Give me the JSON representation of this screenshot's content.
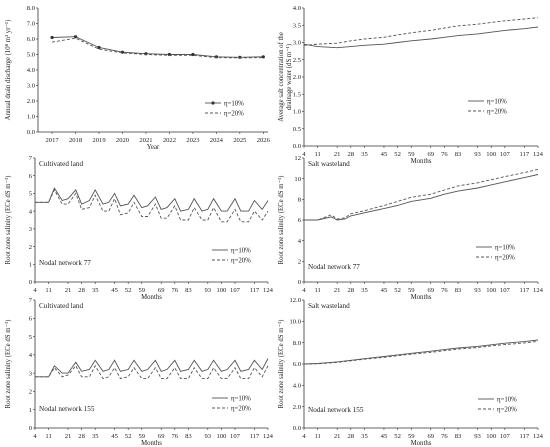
{
  "colors": {
    "series_a": "#555555",
    "series_b": "#555555",
    "axis": "#333333"
  },
  "month_ticks": [
    "4",
    "11",
    "21",
    "28",
    "35",
    "45",
    "52",
    "59",
    "69",
    "76",
    "83",
    "93",
    "100",
    "107",
    "117",
    "124"
  ],
  "chart_data": [
    {
      "type": "line",
      "title": "",
      "xlabel": "Year",
      "ylabel": "Annual drain discharge (10⁸ m³ yr⁻¹)",
      "ylim": [
        0,
        8
      ],
      "yticks": [
        "0.0",
        "1.0",
        "2.0",
        "3.0",
        "4.0",
        "5.0",
        "6.0",
        "7.0",
        "8.0"
      ],
      "categories": [
        "2017",
        "2018",
        "2019",
        "2020",
        "2021",
        "2022",
        "2023",
        "2024",
        "2025",
        "2026"
      ],
      "series": [
        {
          "name": "η=10%",
          "values": [
            6.1,
            6.15,
            5.45,
            5.15,
            5.05,
            5.0,
            5.0,
            4.85,
            4.82,
            4.85
          ]
        },
        {
          "name": "η=20%",
          "values": [
            5.8,
            6.05,
            5.35,
            5.1,
            5.0,
            4.95,
            4.95,
            4.8,
            4.78,
            4.8
          ]
        }
      ],
      "legend": "bottom-right"
    },
    {
      "type": "line",
      "title": "",
      "xlabel": "Months",
      "ylabel": "Average salt concentration of the drainage water (dS m⁻¹)",
      "ylim": [
        0,
        4
      ],
      "yticks": [
        "0.0",
        "0.5",
        "1.0",
        "1.5",
        "2.0",
        "2.5",
        "3.0",
        "3.5",
        "4.0"
      ],
      "x": [
        4,
        11,
        21,
        28,
        35,
        45,
        52,
        59,
        69,
        76,
        83,
        93,
        100,
        107,
        117,
        124
      ],
      "series": [
        {
          "name": "η=10%",
          "values": [
            2.95,
            2.88,
            2.85,
            2.88,
            2.92,
            2.95,
            3.0,
            3.05,
            3.1,
            3.15,
            3.2,
            3.25,
            3.3,
            3.35,
            3.4,
            3.45
          ]
        },
        {
          "name": "η=20%",
          "values": [
            2.92,
            2.95,
            2.98,
            3.05,
            3.1,
            3.15,
            3.22,
            3.28,
            3.35,
            3.42,
            3.48,
            3.53,
            3.58,
            3.63,
            3.68,
            3.72
          ]
        }
      ],
      "legend": "right"
    },
    {
      "type": "line",
      "title": "Cultivated land",
      "annotation": "Nodal network 77",
      "xlabel": "Months",
      "ylabel": "Root zone salinity (ECe dS m⁻¹)",
      "ylim": [
        0,
        7
      ],
      "yticks": [
        "0",
        "1",
        "2",
        "3",
        "4",
        "5",
        "6",
        "7"
      ],
      "x": [
        4,
        8,
        11,
        14,
        18,
        21,
        25,
        28,
        32,
        35,
        39,
        42,
        45,
        48,
        52,
        55,
        59,
        62,
        66,
        69,
        72,
        76,
        79,
        83,
        86,
        90,
        93,
        96,
        100,
        103,
        107,
        110,
        114,
        117,
        121,
        124
      ],
      "series": [
        {
          "name": "η=10%",
          "values": [
            4.5,
            4.5,
            4.5,
            5.3,
            4.6,
            4.7,
            5.2,
            4.4,
            4.6,
            5.2,
            4.4,
            4.5,
            5.0,
            4.3,
            4.4,
            4.9,
            4.2,
            4.3,
            4.8,
            4.1,
            4.2,
            4.7,
            4.0,
            4.1,
            4.7,
            4.0,
            4.1,
            4.7,
            4.0,
            4.0,
            4.7,
            4.0,
            4.0,
            4.6,
            4.1,
            4.6
          ]
        },
        {
          "name": "η=20%",
          "values": [
            4.5,
            4.5,
            4.5,
            5.2,
            4.4,
            4.4,
            5.0,
            4.1,
            4.2,
            4.9,
            4.0,
            4.0,
            4.7,
            3.8,
            3.9,
            4.5,
            3.7,
            3.7,
            4.4,
            3.6,
            3.6,
            4.3,
            3.5,
            3.5,
            4.2,
            3.5,
            3.5,
            4.2,
            3.4,
            3.4,
            4.1,
            3.4,
            3.4,
            4.0,
            3.5,
            4.0
          ]
        }
      ],
      "legend": "bottom-right"
    },
    {
      "type": "line",
      "title": "Salt wasteland",
      "annotation": "Nodal network 77",
      "xlabel": "Months",
      "ylabel": "Root zone salinity (ECe dS m⁻¹)",
      "ylim": [
        0,
        12
      ],
      "yticks": [
        "0",
        "2",
        "4",
        "6",
        "8",
        "10",
        "12"
      ],
      "x": [
        4,
        11,
        18,
        21,
        25,
        28,
        35,
        45,
        52,
        59,
        69,
        76,
        83,
        93,
        100,
        107,
        117,
        124
      ],
      "series": [
        {
          "name": "η=10%",
          "values": [
            6.0,
            6.0,
            6.3,
            6.0,
            6.1,
            6.4,
            6.7,
            7.1,
            7.4,
            7.8,
            8.1,
            8.5,
            8.8,
            9.1,
            9.4,
            9.7,
            10.1,
            10.4
          ]
        },
        {
          "name": "η=20%",
          "values": [
            6.0,
            6.0,
            6.5,
            6.1,
            6.2,
            6.6,
            6.9,
            7.4,
            7.8,
            8.2,
            8.5,
            8.9,
            9.3,
            9.6,
            9.9,
            10.2,
            10.6,
            10.9
          ]
        }
      ],
      "legend": "bottom-right"
    },
    {
      "type": "line",
      "title": "Cultivated land",
      "annotation": "Nodal network 155",
      "xlabel": "Months",
      "ylabel": "Root zone salinity (ECe dS m⁻¹)",
      "ylim": [
        0,
        7
      ],
      "yticks": [
        "0",
        "1",
        "2",
        "3",
        "4",
        "5",
        "6",
        "7"
      ],
      "x": [
        4,
        8,
        11,
        14,
        18,
        21,
        25,
        28,
        32,
        35,
        39,
        42,
        45,
        48,
        52,
        55,
        59,
        62,
        66,
        69,
        72,
        76,
        79,
        83,
        86,
        90,
        93,
        96,
        100,
        103,
        107,
        110,
        114,
        117,
        121,
        124
      ],
      "series": [
        {
          "name": "η=10%",
          "values": [
            2.8,
            2.8,
            2.8,
            3.4,
            3.0,
            3.0,
            3.6,
            3.1,
            3.2,
            3.7,
            3.1,
            3.2,
            3.7,
            3.1,
            3.2,
            3.7,
            3.1,
            3.2,
            3.7,
            3.1,
            3.2,
            3.7,
            3.1,
            3.2,
            3.7,
            3.1,
            3.2,
            3.7,
            3.1,
            3.2,
            3.7,
            3.1,
            3.2,
            3.7,
            3.2,
            3.8
          ]
        },
        {
          "name": "η=20%",
          "values": [
            2.8,
            2.8,
            2.8,
            3.3,
            2.8,
            2.9,
            3.4,
            2.8,
            2.8,
            3.4,
            2.7,
            2.8,
            3.3,
            2.7,
            2.8,
            3.3,
            2.7,
            2.7,
            3.3,
            2.7,
            2.7,
            3.3,
            2.7,
            2.7,
            3.3,
            2.7,
            2.7,
            3.3,
            2.7,
            2.7,
            3.3,
            2.7,
            2.7,
            3.3,
            2.8,
            3.4
          ]
        }
      ],
      "legend": "bottom-right"
    },
    {
      "type": "line",
      "title": "Salt wasteland",
      "annotation": "Nodal network 155",
      "xlabel": "Months",
      "ylabel": "Root zone salinity (ECe dS m⁻¹)",
      "ylim": [
        0,
        12
      ],
      "yticks": [
        "0.0",
        "2.0",
        "4.0",
        "6.0",
        "8.0",
        "10.0",
        "12.0"
      ],
      "x": [
        4,
        11,
        21,
        28,
        35,
        45,
        52,
        59,
        69,
        76,
        83,
        93,
        100,
        107,
        117,
        124
      ],
      "series": [
        {
          "name": "η=10%",
          "values": [
            6.0,
            6.05,
            6.2,
            6.35,
            6.5,
            6.7,
            6.85,
            7.0,
            7.2,
            7.35,
            7.5,
            7.65,
            7.8,
            7.95,
            8.1,
            8.25
          ]
        },
        {
          "name": "η=20%",
          "values": [
            6.0,
            6.02,
            6.15,
            6.3,
            6.45,
            6.62,
            6.78,
            6.92,
            7.1,
            7.25,
            7.4,
            7.55,
            7.7,
            7.82,
            7.98,
            8.12
          ]
        }
      ],
      "legend": "bottom-right"
    }
  ]
}
